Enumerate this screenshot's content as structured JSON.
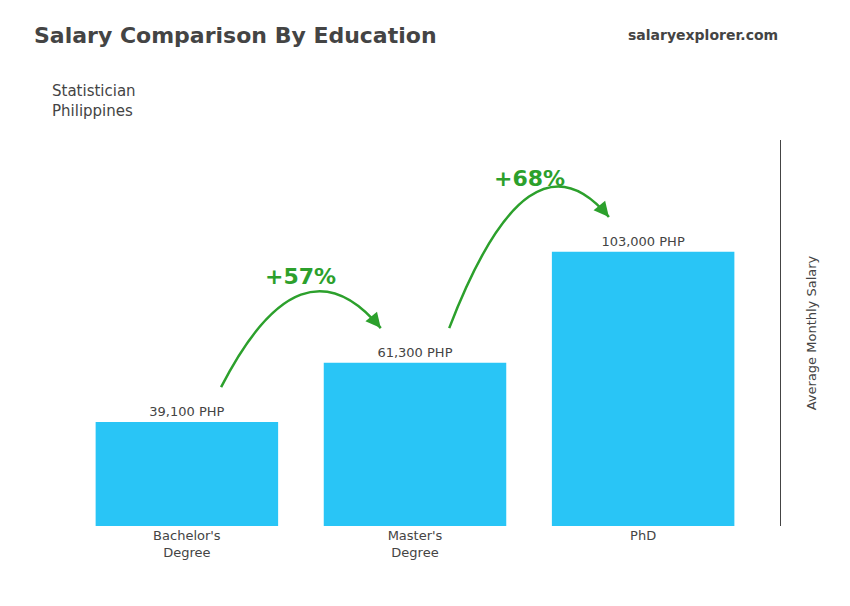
{
  "chart_data": {
    "type": "bar",
    "title": "Salary Comparison By Education",
    "subtitle": "Statistician\nPhilippines",
    "ylabel": "Average Monthly Salary",
    "categories": [
      "Bachelor's\nDegree",
      "Master's\nDegree",
      "PhD"
    ],
    "values": [
      39100,
      61300,
      103000
    ],
    "value_labels": [
      "39,100 PHP",
      "61,300 PHP",
      "103,000 PHP"
    ],
    "data_labels": true,
    "color": "#29C5F6",
    "ylim": [
      0,
      145000
    ],
    "yticks": [],
    "tick_labels": "x",
    "grid": false,
    "annotations": [
      {
        "text": "+57%",
        "from": "Bachelor's\nDegree",
        "to": "Master's\nDegree"
      },
      {
        "text": "+68%",
        "from": "Master's\nDegree",
        "to": "PhD"
      },
      {
        "text": "salaryexplorer.com"
      }
    ]
  }
}
